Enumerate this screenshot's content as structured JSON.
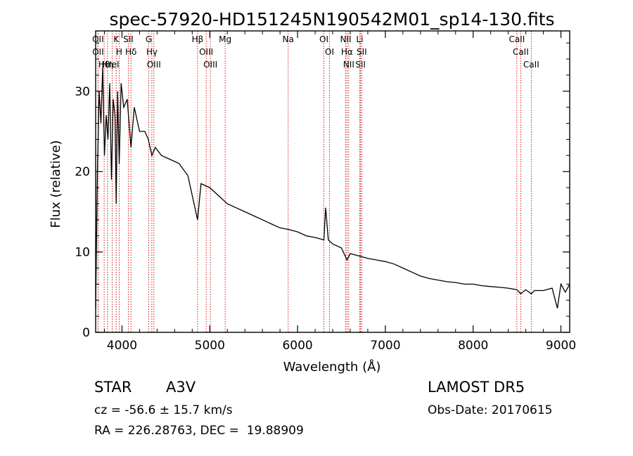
{
  "chart_data": {
    "type": "line",
    "title": "spec-57920-HD151245N190542M01_sp14-130.fits",
    "xlabel": "Wavelength (Å)",
    "ylabel": "Flux (relative)",
    "xlim": [
      3700,
      9100
    ],
    "ylim": [
      0,
      37.5
    ],
    "x_ticks": [
      4000,
      5000,
      6000,
      7000,
      8000,
      9000
    ],
    "y_ticks": [
      0,
      10,
      20,
      30
    ],
    "grid": false,
    "series": [
      {
        "x": [
          3700,
          3720,
          3740,
          3760,
          3780,
          3800,
          3820,
          3840,
          3860,
          3880,
          3900,
          3920,
          3934,
          3950,
          3968,
          3990,
          4020,
          4060,
          4102,
          4140,
          4200,
          4260,
          4300,
          4340,
          4380,
          4450,
          4550,
          4650,
          4750,
          4861,
          4900,
          5000,
          5100,
          5200,
          5300,
          5400,
          5500,
          5600,
          5700,
          5800,
          5900,
          6000,
          6100,
          6200,
          6300,
          6320,
          6350,
          6400,
          6500,
          6563,
          6600,
          6700,
          6800,
          6900,
          7000,
          7100,
          7200,
          7300,
          7400,
          7500,
          7600,
          7700,
          7800,
          7900,
          8000,
          8100,
          8200,
          8300,
          8400,
          8500,
          8542,
          8600,
          8662,
          8700,
          8800,
          8900,
          8960,
          9000,
          9050,
          9100
        ],
        "y": [
          3,
          20,
          30,
          26,
          33,
          22,
          27,
          24,
          31,
          19,
          29,
          27,
          16,
          30,
          21,
          31,
          28,
          29,
          23,
          28,
          25,
          25,
          24,
          22,
          23,
          22,
          21.5,
          21,
          19.5,
          14,
          18.5,
          18,
          17,
          16,
          15.5,
          15,
          14.5,
          14,
          13.5,
          13,
          12.8,
          12.5,
          12,
          11.8,
          11.5,
          15.5,
          11.5,
          11,
          10.5,
          9,
          9.8,
          9.5,
          9.2,
          9,
          8.8,
          8.5,
          8,
          7.5,
          7,
          6.7,
          6.5,
          6.3,
          6.2,
          6,
          6,
          5.8,
          5.7,
          5.6,
          5.5,
          5.3,
          4.8,
          5.3,
          4.8,
          5.2,
          5.2,
          5.5,
          3,
          6,
          5,
          6
        ]
      }
    ],
    "lines": [
      {
        "label": "Hβ",
        "x": 4861
      },
      {
        "label": "Hα",
        "x": 6563
      },
      {
        "label": "Hγ",
        "x": 4340
      },
      {
        "label": "Hδ",
        "x": 4102
      },
      {
        "label": "H",
        "x": 3968
      },
      {
        "label": "K",
        "x": 3934
      },
      {
        "label": "G",
        "x": 4305
      },
      {
        "label": "Mg",
        "x": 5175
      },
      {
        "label": "Na",
        "x": 5893
      },
      {
        "label": "OII",
        "x": 3727
      },
      {
        "label": "OIII",
        "x": 4363
      },
      {
        "label": "OIII",
        "x": 4959
      },
      {
        "label": "OIII",
        "x": 5007
      },
      {
        "label": "OI",
        "x": 6300
      },
      {
        "label": "OI",
        "x": 6364
      },
      {
        "label": "NII",
        "x": 6548
      },
      {
        "label": "NII",
        "x": 6583
      },
      {
        "label": "SII",
        "x": 6717
      },
      {
        "label": "SII",
        "x": 6731
      },
      {
        "label": "SII",
        "x": 4072
      },
      {
        "label": "Li",
        "x": 6708
      },
      {
        "label": "HeI",
        "x": 3889
      },
      {
        "label": "CaII",
        "x": 8498
      },
      {
        "label": "CaII",
        "x": 8542
      },
      {
        "label": "CaII",
        "x": 8662
      },
      {
        "label": "Hθ",
        "x": 3797
      },
      {
        "label": "Hη",
        "x": 3835
      },
      {
        "label": "OII",
        "x": 3727
      }
    ]
  },
  "info": {
    "object_class": "STAR",
    "subclass": "A3V",
    "survey": "LAMOST DR5",
    "cz": "cz = -56.6 ± 15.7 km/s",
    "obs_date": "Obs-Date: 20170615",
    "coords": "RA = 226.28763, DEC =  19.88909"
  },
  "colors": {
    "spectrum": "#000000",
    "line_markers": "#cc0000",
    "axes": "#000000",
    "background": "#ffffff"
  }
}
